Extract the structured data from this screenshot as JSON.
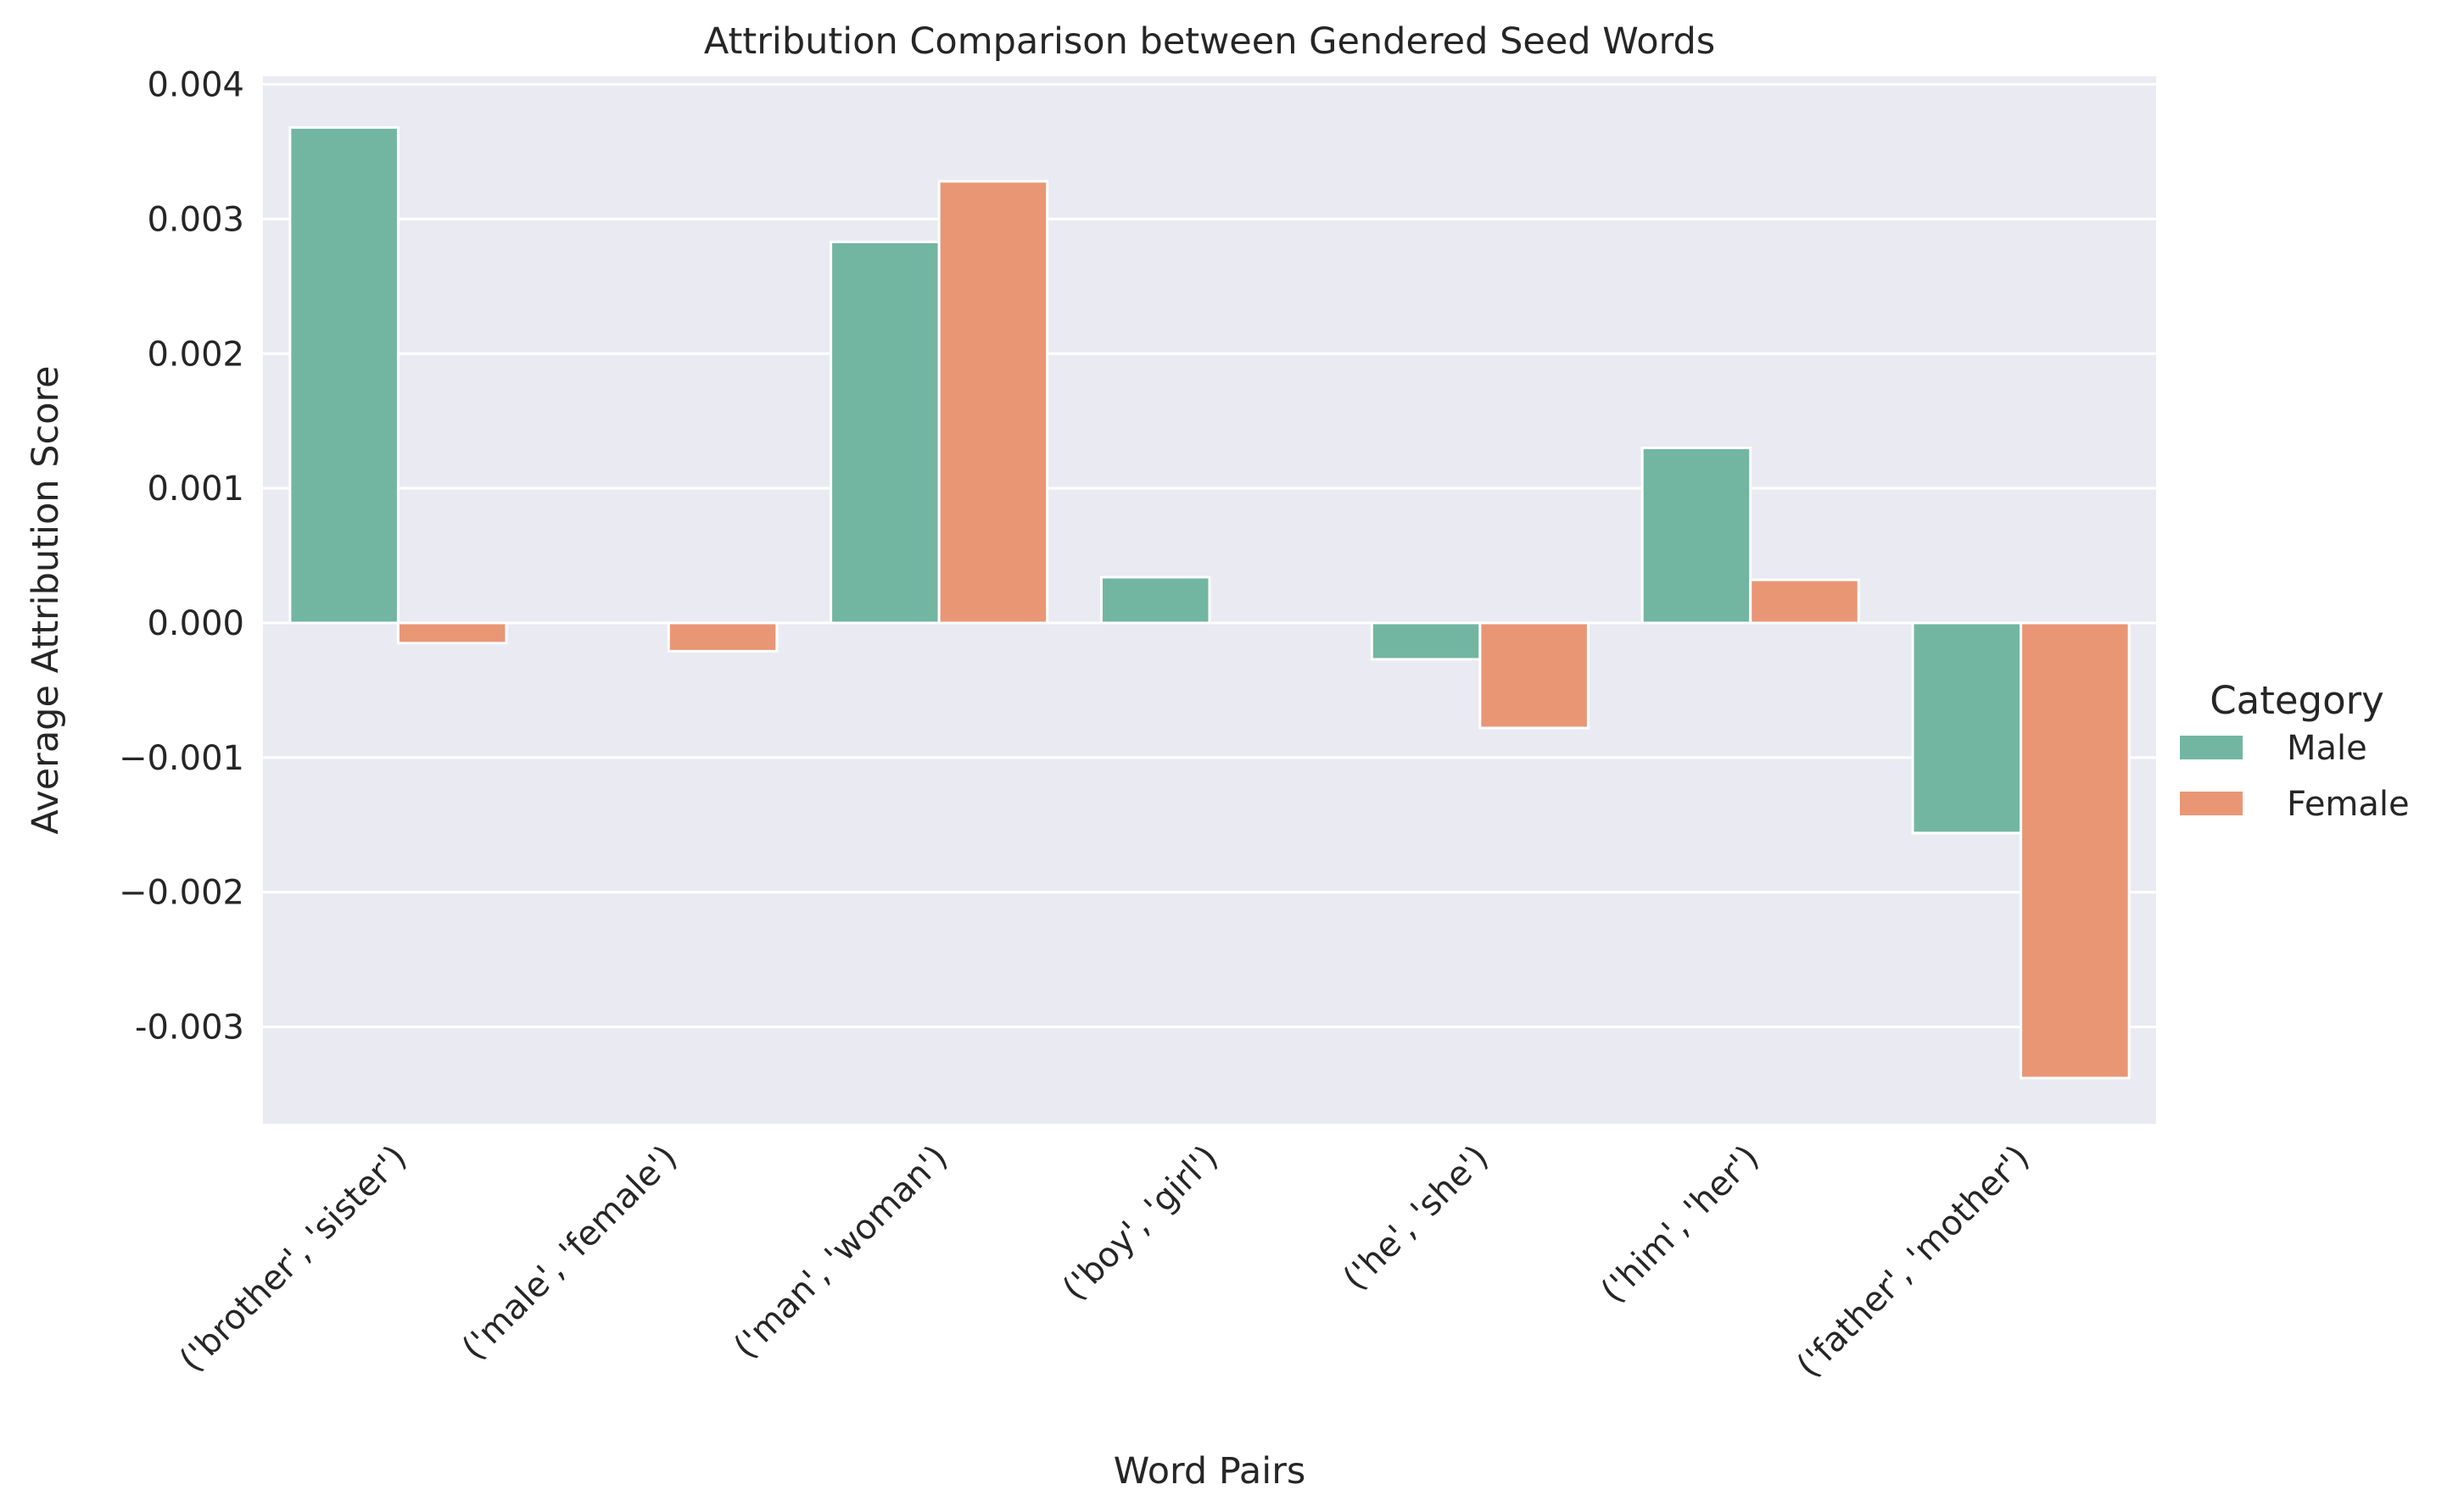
{
  "chart_data": {
    "type": "bar",
    "title": "Attribution Comparison between Gendered Seed Words",
    "xlabel": "Word Pairs",
    "ylabel": "Average Attribution Score",
    "categories": [
      "('brother', 'sister')",
      "('male', 'female')",
      "('man', 'woman')",
      "('boy', 'girl')",
      "('he', 'she')",
      "('him', 'her')",
      "('father', 'mother')"
    ],
    "series": [
      {
        "name": "Male",
        "color": "#72b6a1",
        "values": [
          0.00368,
          0.0,
          0.00283,
          0.00034,
          -0.00027,
          0.0013,
          -0.00156
        ]
      },
      {
        "name": "Female",
        "color": "#e99675",
        "values": [
          -0.00015,
          -0.00021,
          0.00328,
          0.0,
          -0.00078,
          0.00032,
          -0.00338
        ]
      }
    ],
    "yticks": [
      0.004,
      0.003,
      0.002,
      0.001,
      0.0,
      -0.001,
      -0.002,
      -0.003
    ],
    "ytick_labels": [
      "0.004",
      "0.003",
      "0.002",
      "0.001",
      "0.000",
      "−0.001",
      "−0.002",
      "-0.003"
    ],
    "ylim": [
      -0.00372,
      0.00406
    ],
    "grid": true,
    "legend": {
      "title": "Category",
      "placement": "right"
    },
    "plot_bg": "#eaeaf2",
    "grid_color": "#ffffff"
  }
}
